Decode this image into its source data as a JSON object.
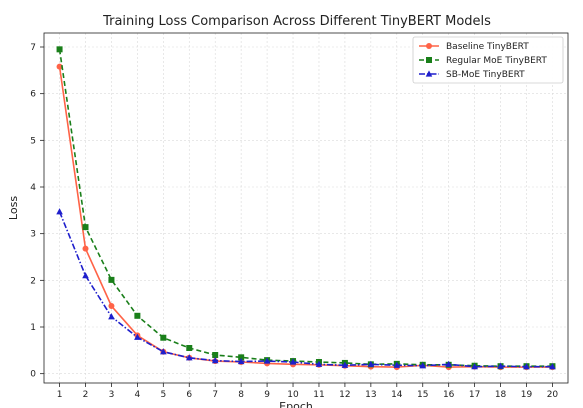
{
  "chart_data": {
    "type": "line",
    "title": "Training Loss Comparison Across Different TinyBERT Models",
    "xlabel": "Epoch",
    "ylabel": "Loss",
    "xlim": [
      0.4,
      20.6
    ],
    "ylim": [
      -0.2,
      7.3
    ],
    "x_ticks": [
      1,
      2,
      3,
      4,
      5,
      6,
      7,
      8,
      9,
      10,
      11,
      12,
      13,
      14,
      15,
      16,
      17,
      18,
      19,
      20
    ],
    "y_ticks": [
      0,
      1,
      2,
      3,
      4,
      5,
      6,
      7
    ],
    "grid": true,
    "legend_position": "top-right",
    "x": [
      1,
      2,
      3,
      4,
      5,
      6,
      7,
      8,
      9,
      10,
      11,
      12,
      13,
      14,
      15,
      16,
      17,
      18,
      19,
      20
    ],
    "series": [
      {
        "name": "Baseline TinyBERT",
        "color": "#ff6347",
        "line_style": "solid",
        "marker": "circle",
        "values": [
          6.58,
          2.68,
          1.45,
          0.82,
          0.47,
          0.34,
          0.27,
          0.25,
          0.22,
          0.2,
          0.19,
          0.17,
          0.15,
          0.14,
          0.18,
          0.14,
          0.15,
          0.14,
          0.14,
          0.14
        ]
      },
      {
        "name": "Regular MoE TinyBERT",
        "color": "#1a7f1a",
        "line_style": "dashed",
        "marker": "square",
        "values": [
          6.95,
          3.14,
          2.01,
          1.24,
          0.77,
          0.55,
          0.4,
          0.35,
          0.29,
          0.27,
          0.25,
          0.23,
          0.2,
          0.21,
          0.19,
          0.19,
          0.17,
          0.16,
          0.16,
          0.16
        ]
      },
      {
        "name": "SB-MoE TinyBERT",
        "color": "#1f1fcc",
        "line_style": "dashdot",
        "marker": "triangle",
        "values": [
          3.47,
          2.1,
          1.22,
          0.78,
          0.47,
          0.34,
          0.28,
          0.26,
          0.27,
          0.25,
          0.2,
          0.18,
          0.2,
          0.18,
          0.17,
          0.2,
          0.15,
          0.16,
          0.15,
          0.15
        ]
      }
    ]
  }
}
